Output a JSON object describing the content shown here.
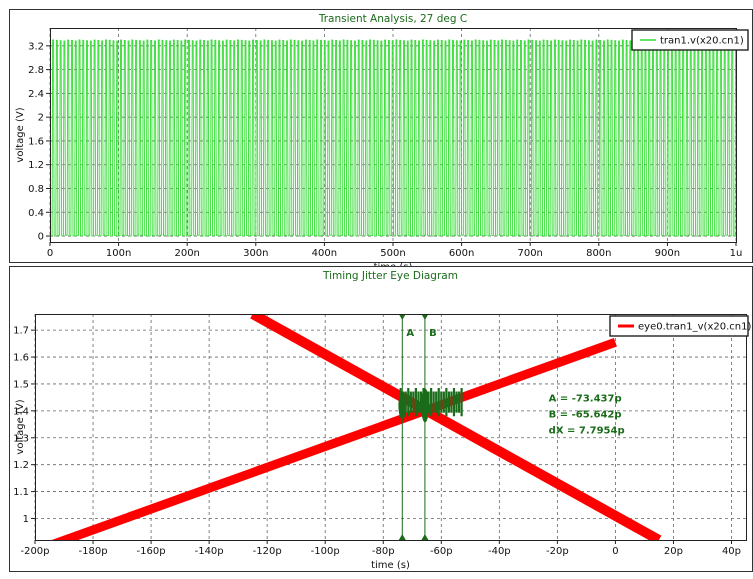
{
  "chart_data": [
    {
      "type": "line",
      "title": "Transient Analysis, 27 deg C",
      "xlabel": "time (s)",
      "ylabel": "voltage (V)",
      "xlim": [
        0,
        1.0
      ],
      "ylim": [
        -0.1,
        3.5
      ],
      "x_unit": "microseconds",
      "x_tick_values": [
        0,
        0.1,
        0.2,
        0.3,
        0.4,
        0.5,
        0.6,
        0.7,
        0.8,
        0.9,
        1.0
      ],
      "x_tick_labels": [
        "0",
        "100n",
        "200n",
        "300n",
        "400n",
        "500n",
        "600n",
        "700n",
        "800n",
        "900n",
        "1u"
      ],
      "y_tick_values": [
        0,
        0.4,
        0.8,
        1.2,
        1.6,
        2,
        2.4,
        2.8,
        3.2
      ],
      "y_tick_labels": [
        "0",
        "0.4",
        "0.8",
        "1.2",
        "1.6",
        "2",
        "2.4",
        "2.8",
        "3.2"
      ],
      "grid": true,
      "legend_position": "top-right",
      "series": [
        {
          "name": "tran1.v(x20.cn1)",
          "color": "#33dd33",
          "signal": "square-like",
          "low": 0,
          "high": 3.3,
          "period": 0.0055
        }
      ]
    },
    {
      "type": "line",
      "title": "Timing Jitter Eye Diagram",
      "xlabel": "time (s)",
      "ylabel": "voltage (V)",
      "xlim": [
        -200,
        45
      ],
      "ylim": [
        0.92,
        1.76
      ],
      "x_unit": "picoseconds",
      "x_tick_values": [
        -200,
        -180,
        -160,
        -140,
        -120,
        -100,
        -80,
        -60,
        -40,
        -20,
        0,
        20,
        40
      ],
      "x_tick_labels": [
        "-200p",
        "-180p",
        "-160p",
        "-140p",
        "-120p",
        "-100p",
        "-80p",
        "-60p",
        "-40p",
        "-20p",
        "0",
        "20p",
        "40p"
      ],
      "y_tick_values": [
        1,
        1.1,
        1.2,
        1.3,
        1.4,
        1.5,
        1.6,
        1.7
      ],
      "y_tick_labels": [
        "1",
        "1.1",
        "1.2",
        "1.3",
        "1.4",
        "1.5",
        "1.6",
        "1.7"
      ],
      "grid": true,
      "legend_position": "top-right",
      "series": [
        {
          "name": "eye0.tran1_v(x20.cn1)",
          "color": "#ff0000",
          "rising": {
            "x": [
              -200,
              0
            ],
            "y": [
              0.88,
              1.655
            ]
          },
          "falling": {
            "x": [
              -125,
              15
            ],
            "y": [
              1.76,
              0.92
            ]
          }
        }
      ],
      "cursors": [
        {
          "label": "A",
          "x": -73.437,
          "color": "#1a6b1a"
        },
        {
          "label": "B",
          "x": -65.642,
          "color": "#1a6b1a"
        }
      ],
      "jitter_band": {
        "x": [
          -74,
          -53
        ],
        "y": [
          1.38,
          1.485
        ],
        "color": "#1a6b1a"
      },
      "annotations": [
        "A = -73.437p",
        "B = -65.642p",
        "dX = 7.7954p"
      ]
    }
  ]
}
